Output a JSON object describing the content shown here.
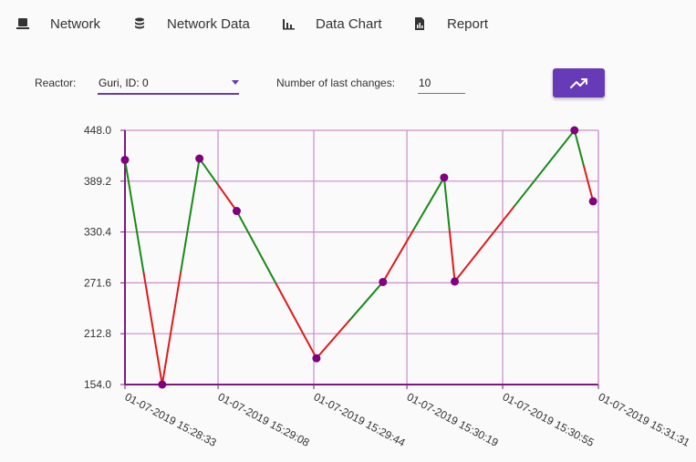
{
  "nav": {
    "items": [
      {
        "label": "Network",
        "icon": "computer-icon"
      },
      {
        "label": "Network Data",
        "icon": "database-icon"
      },
      {
        "label": "Data Chart",
        "icon": "bar-chart-icon"
      },
      {
        "label": "Report",
        "icon": "document-icon"
      }
    ]
  },
  "controls": {
    "reactor_label": "Reactor:",
    "reactor_value": "Guri, ID: 0",
    "changes_label": "Number of last changes:",
    "changes_value": "10",
    "chart_button_icon": "trending-up-icon"
  },
  "colors": {
    "accent": "#673ab7",
    "axis": "#7b1a7b",
    "grid": "#c78fc7",
    "point": "#800080",
    "rise": "#188a18",
    "fall": "#e01a1a"
  },
  "chart_data": {
    "type": "line",
    "title": "",
    "xlabel": "",
    "ylabel": "",
    "x_ticks": [
      "01-07-2019 15:28:33",
      "01-07-2019 15:29:08",
      "01-07-2019 15:29:44",
      "01-07-2019 15:30:19",
      "01-07-2019 15:30:55",
      "01-07-2019 15:31:31"
    ],
    "y_ticks": [
      "154.0",
      "212.8",
      "271.6",
      "330.4",
      "389.2",
      "448.0"
    ],
    "ylim": [
      154.0,
      448.0
    ],
    "x_range": [
      "01-07-2019 15:28:33",
      "01-07-2019 15:31:31"
    ],
    "grid": true,
    "points": [
      {
        "x": "01-07-2019 15:28:33",
        "y": 413.8
      },
      {
        "x": "01-07-2019 15:28:47",
        "y": 154.0
      },
      {
        "x": "01-07-2019 15:29:01",
        "y": 415.3
      },
      {
        "x": "01-07-2019 15:29:15",
        "y": 354.7
      },
      {
        "x": "01-07-2019 15:29:45",
        "y": 184.4
      },
      {
        "x": "01-07-2019 15:30:10",
        "y": 272.6
      },
      {
        "x": "01-07-2019 15:30:33",
        "y": 393.4
      },
      {
        "x": "01-07-2019 15:30:37",
        "y": 273.2
      },
      {
        "x": "01-07-2019 15:31:22",
        "y": 448.0
      },
      {
        "x": "01-07-2019 15:31:29",
        "y": 365.9
      }
    ]
  }
}
